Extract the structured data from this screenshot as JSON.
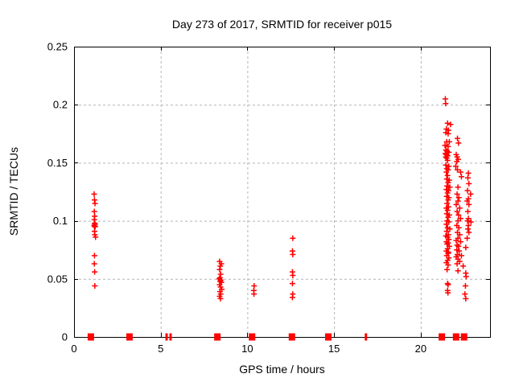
{
  "header": {
    "title": "Day 273 of 2017, SRMTID for receiver p015"
  },
  "chart_data": {
    "type": "scatter",
    "title": "Day 273 of 2017, SRMTID for receiver p015",
    "xlabel": "GPS time / hours",
    "ylabel": "SRMTID / TECUs",
    "xlim": [
      0,
      24
    ],
    "ylim": [
      0,
      0.25
    ],
    "xticks": {
      "values": [
        0,
        5,
        10,
        15,
        20
      ],
      "labels": [
        "0",
        "5",
        "10",
        "15",
        "20"
      ]
    },
    "yticks": {
      "values": [
        0,
        0.05,
        0.1,
        0.15,
        0.2,
        0.25
      ],
      "labels": [
        "0",
        "0.05",
        "0.1",
        "0.15",
        "0.2",
        "0.25"
      ]
    },
    "grid": true,
    "legend_position": "none",
    "colors": {
      "marker": "#ff0000",
      "grid": "#b4b4b4",
      "axis": "#000000",
      "background": "#ffffff"
    },
    "series": [
      {
        "name": "srmtid-points",
        "marker": "plus",
        "points": [
          [
            1.16,
            0.123
          ],
          [
            1.18,
            0.118
          ],
          [
            1.21,
            0.115
          ],
          [
            1.17,
            0.108
          ],
          [
            1.19,
            0.104
          ],
          [
            1.17,
            0.101
          ],
          [
            1.19,
            0.098
          ],
          [
            1.21,
            0.097
          ],
          [
            1.16,
            0.096
          ],
          [
            1.22,
            0.095
          ],
          [
            1.19,
            0.095
          ],
          [
            1.18,
            0.091
          ],
          [
            1.2,
            0.088
          ],
          [
            1.24,
            0.086
          ],
          [
            1.18,
            0.07
          ],
          [
            1.17,
            0.063
          ],
          [
            1.19,
            0.056
          ],
          [
            1.2,
            0.044
          ],
          [
            8.4,
            0.065
          ],
          [
            8.5,
            0.063
          ],
          [
            8.44,
            0.061
          ],
          [
            8.4,
            0.058
          ],
          [
            8.46,
            0.054
          ],
          [
            8.42,
            0.051
          ],
          [
            8.38,
            0.05
          ],
          [
            8.46,
            0.049
          ],
          [
            8.43,
            0.048
          ],
          [
            8.5,
            0.047
          ],
          [
            8.4,
            0.045
          ],
          [
            8.45,
            0.043
          ],
          [
            8.52,
            0.041
          ],
          [
            8.42,
            0.039
          ],
          [
            8.46,
            0.037
          ],
          [
            8.4,
            0.035
          ],
          [
            8.45,
            0.033
          ],
          [
            10.39,
            0.044
          ],
          [
            10.37,
            0.04
          ],
          [
            10.38,
            0.037
          ],
          [
            12.62,
            0.085
          ],
          [
            12.6,
            0.074
          ],
          [
            12.62,
            0.071
          ],
          [
            12.6,
            0.056
          ],
          [
            12.62,
            0.053
          ],
          [
            12.6,
            0.046
          ],
          [
            12.62,
            0.037
          ],
          [
            12.6,
            0.034
          ],
          [
            21.42,
            0.205
          ],
          [
            21.44,
            0.201
          ],
          [
            21.55,
            0.184
          ],
          [
            21.72,
            0.183
          ],
          [
            21.48,
            0.179
          ],
          [
            21.6,
            0.178
          ],
          [
            21.45,
            0.176
          ],
          [
            21.58,
            0.175
          ],
          [
            22.12,
            0.171
          ],
          [
            21.5,
            0.168
          ],
          [
            21.65,
            0.168
          ],
          [
            22.18,
            0.167
          ],
          [
            21.4,
            0.165
          ],
          [
            21.58,
            0.164
          ],
          [
            21.45,
            0.161
          ],
          [
            21.52,
            0.16
          ],
          [
            21.62,
            0.159
          ],
          [
            21.42,
            0.158
          ],
          [
            21.48,
            0.157
          ],
          [
            21.55,
            0.156
          ],
          [
            22.05,
            0.157
          ],
          [
            21.45,
            0.155
          ],
          [
            21.5,
            0.154
          ],
          [
            22.1,
            0.155
          ],
          [
            22.16,
            0.153
          ],
          [
            21.55,
            0.152
          ],
          [
            22.08,
            0.151
          ],
          [
            21.45,
            0.148
          ],
          [
            21.62,
            0.147
          ],
          [
            22.02,
            0.147
          ],
          [
            21.5,
            0.145
          ],
          [
            21.58,
            0.144
          ],
          [
            22.12,
            0.144
          ],
          [
            21.48,
            0.142
          ],
          [
            22.3,
            0.142
          ],
          [
            22.75,
            0.141
          ],
          [
            21.55,
            0.139
          ],
          [
            22.35,
            0.138
          ],
          [
            22.72,
            0.137
          ],
          [
            21.5,
            0.136
          ],
          [
            21.65,
            0.135
          ],
          [
            21.58,
            0.133
          ],
          [
            22.78,
            0.132
          ],
          [
            21.52,
            0.13
          ],
          [
            21.68,
            0.129
          ],
          [
            22.15,
            0.129
          ],
          [
            21.48,
            0.127
          ],
          [
            21.6,
            0.126
          ],
          [
            22.7,
            0.126
          ],
          [
            21.55,
            0.124
          ],
          [
            22.1,
            0.123
          ],
          [
            22.88,
            0.123
          ],
          [
            21.5,
            0.121
          ],
          [
            21.62,
            0.12
          ],
          [
            22.2,
            0.12
          ],
          [
            22.75,
            0.119
          ],
          [
            21.58,
            0.118
          ],
          [
            22.15,
            0.117
          ],
          [
            22.68,
            0.117
          ],
          [
            21.52,
            0.115
          ],
          [
            22.05,
            0.114
          ],
          [
            22.78,
            0.114
          ],
          [
            21.6,
            0.112
          ],
          [
            21.48,
            0.111
          ],
          [
            22.25,
            0.111
          ],
          [
            21.55,
            0.109
          ],
          [
            22.1,
            0.108
          ],
          [
            22.72,
            0.108
          ],
          [
            21.5,
            0.106
          ],
          [
            21.65,
            0.105
          ],
          [
            22.18,
            0.105
          ],
          [
            21.58,
            0.103
          ],
          [
            22.3,
            0.102
          ],
          [
            22.75,
            0.102
          ],
          [
            21.52,
            0.1
          ],
          [
            21.62,
            0.099
          ],
          [
            22.15,
            0.1
          ],
          [
            22.7,
            0.1
          ],
          [
            22.9,
            0.099
          ],
          [
            21.48,
            0.097
          ],
          [
            22.08,
            0.096
          ],
          [
            22.75,
            0.096
          ],
          [
            21.55,
            0.094
          ],
          [
            21.68,
            0.093
          ],
          [
            22.2,
            0.094
          ],
          [
            22.72,
            0.093
          ],
          [
            21.5,
            0.091
          ],
          [
            22.12,
            0.09
          ],
          [
            22.78,
            0.09
          ],
          [
            21.6,
            0.088
          ],
          [
            21.45,
            0.087
          ],
          [
            22.25,
            0.088
          ],
          [
            21.55,
            0.086
          ],
          [
            22.15,
            0.085
          ],
          [
            22.68,
            0.085
          ],
          [
            21.62,
            0.084
          ],
          [
            22.05,
            0.083
          ],
          [
            21.48,
            0.082
          ],
          [
            21.58,
            0.081
          ],
          [
            22.3,
            0.082
          ],
          [
            21.52,
            0.08
          ],
          [
            22.1,
            0.079
          ],
          [
            21.65,
            0.078
          ],
          [
            22.18,
            0.078
          ],
          [
            22.6,
            0.077
          ],
          [
            21.55,
            0.076
          ],
          [
            22.08,
            0.075
          ],
          [
            21.48,
            0.074
          ],
          [
            21.6,
            0.073
          ],
          [
            22.22,
            0.074
          ],
          [
            21.58,
            0.072
          ],
          [
            22.12,
            0.071
          ],
          [
            21.5,
            0.07
          ],
          [
            22.05,
            0.069
          ],
          [
            22.35,
            0.07
          ],
          [
            21.62,
            0.068
          ],
          [
            22.15,
            0.067
          ],
          [
            21.55,
            0.066
          ],
          [
            22.25,
            0.065
          ],
          [
            21.48,
            0.064
          ],
          [
            22.1,
            0.063
          ],
          [
            21.58,
            0.062
          ],
          [
            22.45,
            0.061
          ],
          [
            21.52,
            0.058
          ],
          [
            22.15,
            0.057
          ],
          [
            22.6,
            0.055
          ],
          [
            22.62,
            0.052
          ],
          [
            21.55,
            0.046
          ],
          [
            21.58,
            0.045
          ],
          [
            22.58,
            0.044
          ],
          [
            21.55,
            0.04
          ],
          [
            21.57,
            0.038
          ],
          [
            22.55,
            0.037
          ],
          [
            22.6,
            0.033
          ]
        ]
      },
      {
        "name": "zero-line-squares",
        "marker": "square",
        "points": [
          [
            0.97,
            0
          ],
          [
            3.2,
            0
          ],
          [
            8.27,
            0
          ],
          [
            10.27,
            0
          ],
          [
            12.57,
            0
          ],
          [
            14.67,
            0
          ],
          [
            21.22,
            0
          ],
          [
            22.04,
            0
          ],
          [
            22.5,
            0
          ]
        ]
      },
      {
        "name": "zero-line-bars",
        "marker": "vbar",
        "points": [
          [
            5.34,
            0
          ],
          [
            5.57,
            0
          ],
          [
            16.84,
            0
          ]
        ]
      }
    ]
  }
}
